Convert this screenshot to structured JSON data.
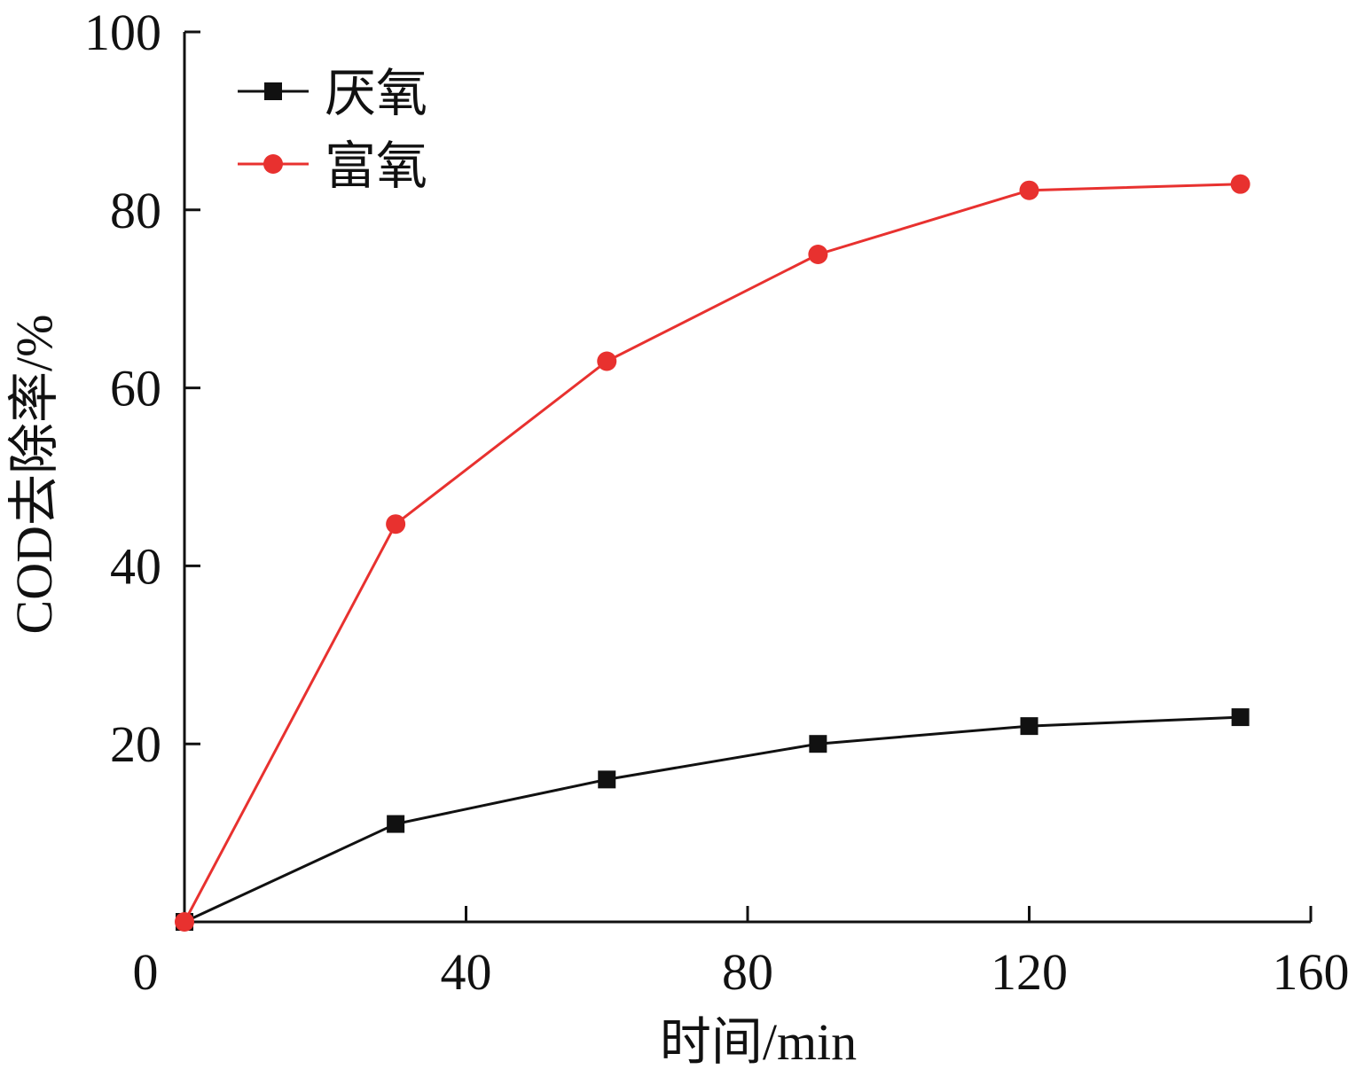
{
  "chart_data": {
    "type": "line",
    "title": "",
    "xlabel": "时间/min",
    "ylabel": "COD去除率/%",
    "xlim": [
      0,
      160
    ],
    "ylim": [
      0,
      100
    ],
    "xticks": [
      "0",
      "40",
      "80",
      "120",
      "160"
    ],
    "yticks": [
      "20",
      "40",
      "60",
      "80",
      "100"
    ],
    "xtick_values": [
      0,
      40,
      80,
      120,
      160
    ],
    "ytick_values": [
      20,
      40,
      60,
      80,
      100
    ],
    "grid": false,
    "legend_position": "top-left",
    "series": [
      {
        "name": "厌氧",
        "color": "#111111",
        "marker": "square",
        "x": [
          0,
          30,
          60,
          90,
          120,
          150
        ],
        "values": [
          0,
          11,
          16,
          20,
          22,
          23
        ]
      },
      {
        "name": "富氧",
        "color": "#e8312f",
        "marker": "circle",
        "x": [
          0,
          30,
          60,
          90,
          120,
          150
        ],
        "values": [
          0,
          44.7,
          63,
          75,
          82.2,
          82.9
        ]
      }
    ]
  }
}
